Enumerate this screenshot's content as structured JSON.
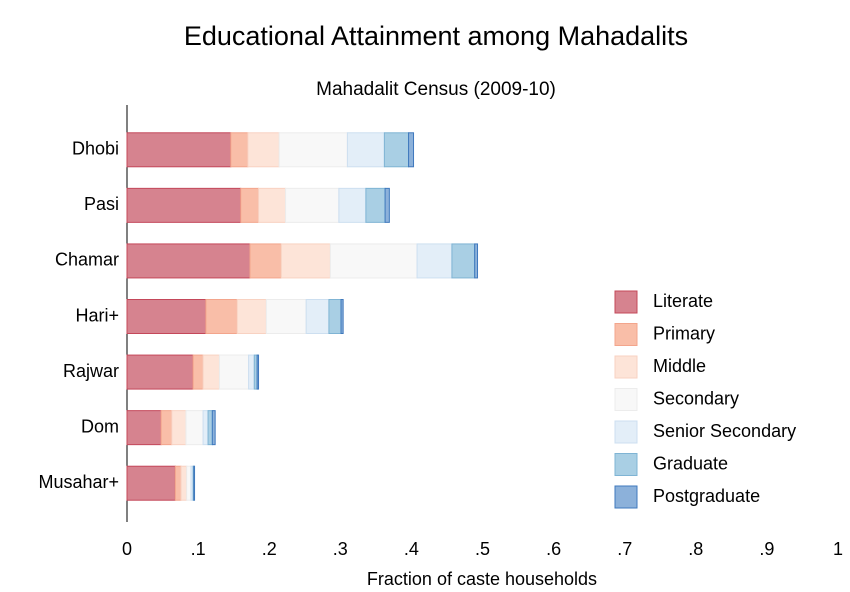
{
  "chart_data": {
    "type": "stacked_barh",
    "title": "Educational Attainment among Mahadalits",
    "subtitle": "Mahadalit Census (2009-10)",
    "xlabel": "Fraction of caste households",
    "categories": [
      "Dhobi",
      "Pasi",
      "Chamar",
      "Hari+",
      "Rajwar",
      "Dom",
      "Musahar+"
    ],
    "series": [
      {
        "name": "Literate",
        "color": "#d6838f",
        "edgecolor": "#c4485a",
        "values": [
          0.146,
          0.16,
          0.173,
          0.111,
          0.093,
          0.048,
          0.068
        ]
      },
      {
        "name": "Primary",
        "color": "#f9bea8",
        "edgecolor": "#f3a58c",
        "values": [
          0.024,
          0.025,
          0.044,
          0.044,
          0.014,
          0.015,
          0.008
        ]
      },
      {
        "name": "Middle",
        "color": "#fde4d8",
        "edgecolor": "#f8d2c2",
        "values": [
          0.044,
          0.038,
          0.069,
          0.041,
          0.023,
          0.02,
          0.008
        ]
      },
      {
        "name": "Secondary",
        "color": "#f8f8f8",
        "edgecolor": "#ececec",
        "values": [
          0.096,
          0.075,
          0.122,
          0.056,
          0.041,
          0.024,
          0.006
        ]
      },
      {
        "name": "Senior Secondary",
        "color": "#e3eef8",
        "edgecolor": "#cddff0",
        "values": [
          0.052,
          0.038,
          0.049,
          0.032,
          0.008,
          0.007,
          0.003
        ]
      },
      {
        "name": "Graduate",
        "color": "#a9cfe4",
        "edgecolor": "#7fb4d4",
        "values": [
          0.034,
          0.027,
          0.032,
          0.017,
          0.004,
          0.006,
          0.001
        ]
      },
      {
        "name": "Postgraduate",
        "color": "#8cb1da",
        "edgecolor": "#3f79bd",
        "values": [
          0.007,
          0.006,
          0.004,
          0.003,
          0.002,
          0.004,
          0.001
        ]
      }
    ],
    "xlim": [
      0,
      1
    ],
    "xticks": [
      0,
      {
        "value": 0.1,
        "label": ".1"
      },
      {
        "value": 0.2,
        "label": ".2"
      },
      {
        "value": 0.3,
        "label": ".3"
      },
      {
        "value": 0.4,
        "label": ".4"
      },
      {
        "value": 0.5,
        "label": ".5"
      },
      {
        "value": 0.6,
        "label": ".6"
      },
      {
        "value": 0.7,
        "label": ".7"
      },
      {
        "value": 0.8,
        "label": ".8"
      },
      {
        "value": 0.9,
        "label": ".9"
      },
      1
    ],
    "legend": "right"
  }
}
